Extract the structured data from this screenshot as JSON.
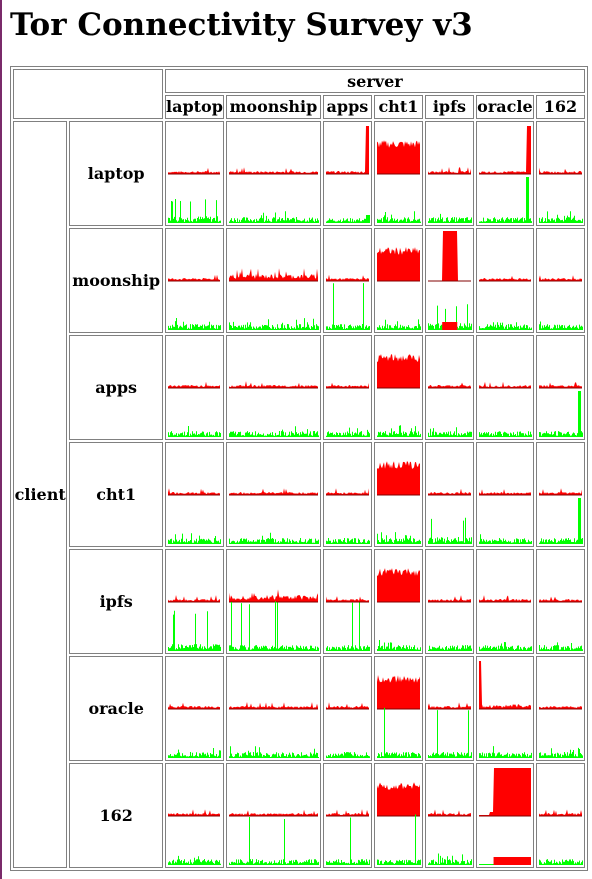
{
  "title": "Tor Connectivity Survey v3",
  "table": {
    "server_label": "server",
    "client_label": "client",
    "servers": [
      "laptop",
      "moonship",
      "apps",
      "cht1",
      "ipfs",
      "oracle",
      "162"
    ],
    "clients": [
      "laptop",
      "moonship",
      "apps",
      "cht1",
      "ipfs",
      "oracle",
      "162"
    ]
  },
  "colors": {
    "latency": "#ff0000",
    "latency_line": "#800000",
    "throughput": "#00ff00",
    "throughput_line": "#008000",
    "border": "#808080"
  },
  "chart_data": {
    "type": "small-multiples",
    "description_rows": "client",
    "description_cols": "server",
    "cells": [
      [
        {
          "red": "flat",
          "green": "spiky"
        },
        {
          "red": "flat",
          "green": "low"
        },
        {
          "red": "flat-spike-end",
          "green": "low-spike-end"
        },
        {
          "red": "full",
          "green": "low"
        },
        {
          "red": "flat",
          "green": "low"
        },
        {
          "red": "flat-spike-end",
          "green": "spike-end"
        },
        {
          "red": "flat",
          "green": "low"
        }
      ],
      [
        {
          "red": "flat",
          "green": "low"
        },
        {
          "red": "bumpy",
          "green": "low"
        },
        {
          "red": "flat",
          "green": "spike"
        },
        {
          "red": "full",
          "green": "low"
        },
        {
          "red": "block",
          "green": "spiky"
        },
        {
          "red": "flat",
          "green": "low"
        },
        {
          "red": "flat",
          "green": "low"
        }
      ],
      [
        {
          "red": "flat",
          "green": "low"
        },
        {
          "red": "flat",
          "green": "low"
        },
        {
          "red": "flat",
          "green": "low"
        },
        {
          "red": "full",
          "green": "low"
        },
        {
          "red": "flat",
          "green": "low"
        },
        {
          "red": "flat",
          "green": "spike"
        },
        {
          "red": "flat",
          "green": "spike-end"
        }
      ],
      [
        {
          "red": "flat",
          "green": "low"
        },
        {
          "red": "flat",
          "green": "low"
        },
        {
          "red": "flat",
          "green": "spike"
        },
        {
          "red": "full",
          "green": "low"
        },
        {
          "red": "flat",
          "green": "spiky"
        },
        {
          "red": "flat",
          "green": "low"
        },
        {
          "red": "flat",
          "green": "spike-end"
        }
      ],
      [
        {
          "red": "flat",
          "green": "spiky-tall"
        },
        {
          "red": "bumpy",
          "green": "spike"
        },
        {
          "red": "flat",
          "green": "spike"
        },
        {
          "red": "full",
          "green": "low"
        },
        {
          "red": "flat",
          "green": "low"
        },
        {
          "red": "flat",
          "green": "low"
        },
        {
          "red": "flat",
          "green": "low"
        }
      ],
      [
        {
          "red": "flat",
          "green": "low"
        },
        {
          "red": "flat",
          "green": "low"
        },
        {
          "red": "flat",
          "green": "low"
        },
        {
          "red": "full",
          "green": "spike"
        },
        {
          "red": "flat",
          "green": "spike"
        },
        {
          "red": "spike-start",
          "green": "low"
        },
        {
          "red": "flat",
          "green": "low"
        }
      ],
      [
        {
          "red": "flat",
          "green": "low"
        },
        {
          "red": "flat",
          "green": "spike"
        },
        {
          "red": "flat",
          "green": "spike"
        },
        {
          "red": "full",
          "green": "spike"
        },
        {
          "red": "flat",
          "green": "low"
        },
        {
          "red": "block-wide",
          "green": "none"
        },
        {
          "red": "flat",
          "green": "spike"
        }
      ]
    ]
  }
}
